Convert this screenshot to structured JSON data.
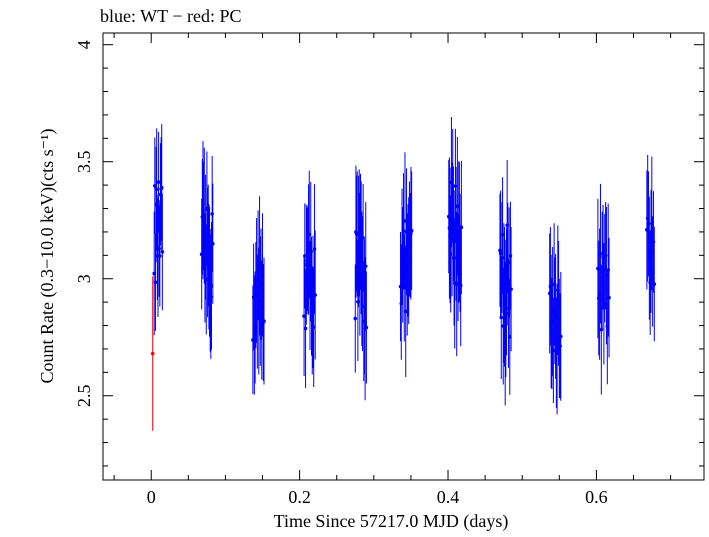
{
  "chart_data": {
    "type": "scatter",
    "title": "blue: WT − red: PC",
    "xlabel": "Time Since 57217.0 MJD (days)",
    "ylabel": "Count Rate (0.3−10.0 keV)(cts s⁻¹)",
    "xlim": [
      -0.065,
      0.745
    ],
    "ylim": [
      2.14,
      4.05
    ],
    "x_ticks": [
      0,
      0.2,
      0.4,
      0.6
    ],
    "x_tick_labels": [
      "0",
      "0.2",
      "0.4",
      "0.6"
    ],
    "y_ticks": [
      2.5,
      3,
      3.5,
      4
    ],
    "y_tick_labels": [
      "2.5",
      "3",
      "3.5",
      "4"
    ],
    "grid": false,
    "legend": "top-left",
    "colors": {
      "WT": "#0000ff",
      "PC": "#ff0000"
    },
    "series": [
      {
        "name": "PC",
        "color": "#ff0000",
        "points": [
          {
            "x": 0.002,
            "y": 2.68,
            "err": 0.33
          }
        ]
      },
      {
        "name": "WT",
        "color": "#0000ff",
        "clusters": [
          {
            "x0": 0.004,
            "x1": 0.015,
            "n": 14,
            "mean": 3.2,
            "spread": 0.22,
            "err": 0.24
          },
          {
            "x0": 0.068,
            "x1": 0.083,
            "n": 18,
            "mean": 3.1,
            "spread": 0.2,
            "err": 0.26
          },
          {
            "x0": 0.137,
            "x1": 0.152,
            "n": 16,
            "mean": 2.9,
            "spread": 0.2,
            "err": 0.26
          },
          {
            "x0": 0.206,
            "x1": 0.221,
            "n": 16,
            "mean": 3.0,
            "spread": 0.22,
            "err": 0.26
          },
          {
            "x0": 0.275,
            "x1": 0.29,
            "n": 18,
            "mean": 3.0,
            "spread": 0.25,
            "err": 0.27
          },
          {
            "x0": 0.336,
            "x1": 0.351,
            "n": 16,
            "mean": 3.05,
            "spread": 0.2,
            "err": 0.26
          },
          {
            "x0": 0.401,
            "x1": 0.418,
            "n": 20,
            "mean": 3.2,
            "spread": 0.25,
            "err": 0.27
          },
          {
            "x0": 0.47,
            "x1": 0.485,
            "n": 18,
            "mean": 3.0,
            "spread": 0.25,
            "err": 0.27
          },
          {
            "x0": 0.537,
            "x1": 0.552,
            "n": 16,
            "mean": 2.85,
            "spread": 0.18,
            "err": 0.26
          },
          {
            "x0": 0.602,
            "x1": 0.617,
            "n": 14,
            "mean": 2.95,
            "spread": 0.18,
            "err": 0.26
          },
          {
            "x0": 0.668,
            "x1": 0.678,
            "n": 10,
            "mean": 3.1,
            "spread": 0.18,
            "err": 0.25
          }
        ]
      }
    ]
  }
}
